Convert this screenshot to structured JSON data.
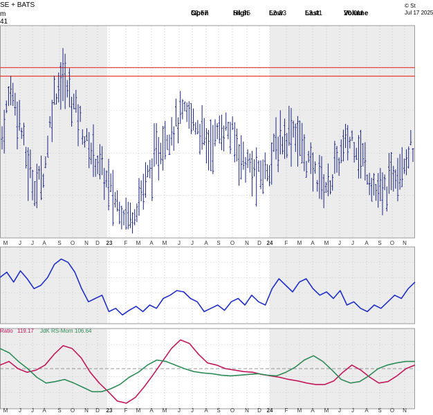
{
  "header": {
    "exchange_fragment": "SE + BATS",
    "ticker_fragment": "m",
    "price_fragment": "41",
    "copyright_fragment": "© St",
    "date_fragment": "Jul 17 2025",
    "stats": [
      {
        "label": "Open",
        "value": "52.57"
      },
      {
        "label": "High",
        "value": "54.85"
      },
      {
        "label": "Low",
        "value": "52.23"
      },
      {
        "label": "Last",
        "value": "53.41"
      },
      {
        "label": "Volume",
        "value": "20.0M"
      }
    ]
  },
  "rrg_legend": {
    "ratio_label": "Ratio",
    "ratio_value": "119.17",
    "mom_label": "JdK RS-Mom",
    "mom_value": "106.64"
  },
  "colors": {
    "price_bars": "#1a237e",
    "rs_line": "#1f2ec9",
    "ratio_line": "#c2185b",
    "momentum_line": "#2e8b57",
    "resistance": "#e53935",
    "shade": "#ececec"
  },
  "chart_data": [
    {
      "type": "ohlc",
      "panel": "price",
      "x_labels": [
        "M",
        "J",
        "J",
        "A",
        "S",
        "O",
        "N",
        "D",
        "23",
        "F",
        "M",
        "A",
        "M",
        "J",
        "J",
        "A",
        "S",
        "O",
        "N",
        "D",
        "24",
        "F",
        "M",
        "A",
        "M",
        "J",
        "J",
        "A",
        "S",
        "O",
        "N"
      ],
      "horizontal_lines": [
        54.85,
        54.0
      ],
      "ylim": [
        38,
        59
      ],
      "closes": [
        48,
        53,
        50,
        45,
        43,
        45,
        52,
        54,
        52,
        50,
        47,
        46,
        44,
        42,
        41,
        40,
        42,
        44,
        46,
        48,
        49,
        50,
        50,
        49,
        47,
        48,
        49,
        48,
        46,
        45,
        44,
        45,
        47,
        48,
        49,
        47,
        45,
        44,
        43,
        45,
        47,
        48,
        46,
        44,
        42,
        43,
        45,
        46,
        47
      ]
    },
    {
      "type": "line",
      "panel": "relative_strength",
      "series": [
        {
          "values": [
            0.62,
            0.7,
            0.55,
            0.72,
            0.6,
            0.45,
            0.5,
            0.62,
            0.82,
            0.9,
            0.85,
            0.7,
            0.45,
            0.25,
            0.3,
            0.35,
            0.1,
            0.15,
            0.05,
            0.12,
            0.18,
            0.1,
            0.2,
            0.15,
            0.3,
            0.35,
            0.42,
            0.4,
            0.3,
            0.25,
            0.1,
            0.15,
            0.2,
            0.12,
            0.25,
            0.3,
            0.2,
            0.35,
            0.25,
            0.2,
            0.45,
            0.6,
            0.5,
            0.4,
            0.55,
            0.6,
            0.45,
            0.35,
            0.4,
            0.3,
            0.42,
            0.2,
            0.25,
            0.15,
            0.1,
            0.2,
            0.15,
            0.25,
            0.35,
            0.3,
            0.45,
            0.55
          ]
        }
      ]
    },
    {
      "type": "line",
      "panel": "rrg_indicator",
      "series": [
        {
          "name": "Ratio",
          "values": [
            0.55,
            0.6,
            0.5,
            0.45,
            0.48,
            0.55,
            0.7,
            0.82,
            0.78,
            0.65,
            0.45,
            0.3,
            0.18,
            0.05,
            0.02,
            0.1,
            0.25,
            0.42,
            0.6,
            0.78,
            0.9,
            0.85,
            0.7,
            0.58,
            0.55,
            0.5,
            0.48,
            0.46,
            0.45,
            0.42,
            0.4,
            0.38,
            0.35,
            0.33,
            0.3,
            0.28,
            0.28,
            0.33,
            0.45,
            0.55,
            0.48,
            0.38,
            0.3,
            0.32,
            0.4,
            0.5,
            0.55
          ]
        },
        {
          "name": "JdK RS-Mom",
          "values": [
            0.78,
            0.72,
            0.6,
            0.5,
            0.38,
            0.3,
            0.32,
            0.35,
            0.3,
            0.24,
            0.18,
            0.18,
            0.22,
            0.28,
            0.38,
            0.45,
            0.55,
            0.62,
            0.6,
            0.55,
            0.5,
            0.46,
            0.44,
            0.43,
            0.41,
            0.4,
            0.41,
            0.42,
            0.43,
            0.41,
            0.4,
            0.45,
            0.52,
            0.62,
            0.68,
            0.6,
            0.48,
            0.35,
            0.3,
            0.32,
            0.4,
            0.5,
            0.55,
            0.58,
            0.6,
            0.6
          ]
        }
      ],
      "reference_line": 0.5
    }
  ]
}
